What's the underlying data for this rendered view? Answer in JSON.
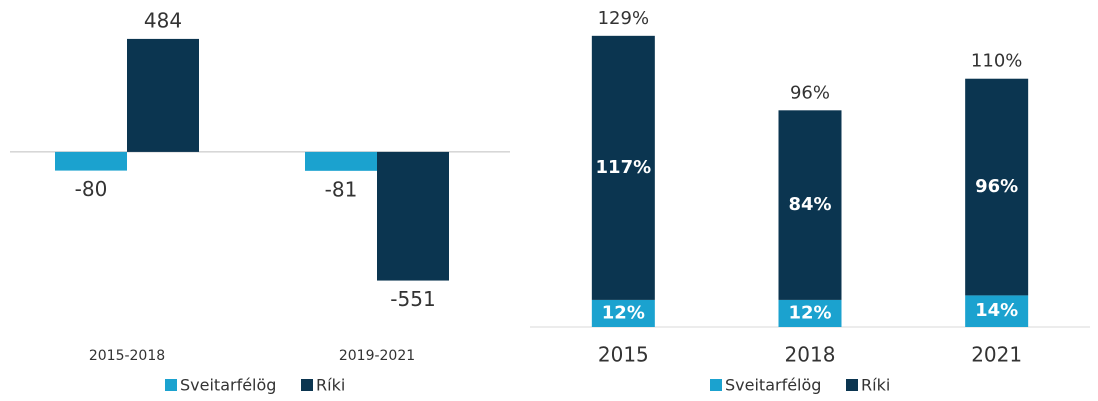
{
  "chart_data": [
    {
      "type": "bar",
      "categories": [
        "2015-2018",
        "2019-2021"
      ],
      "series": [
        {
          "name": "Sveitarfélög",
          "color": "#1ba2cf",
          "values": [
            -80,
            -81
          ]
        },
        {
          "name": "Ríki",
          "color": "#0b3550",
          "values": [
            484,
            -551
          ]
        }
      ],
      "ylim": [
        -600,
        550
      ]
    },
    {
      "type": "stacked_bar",
      "categories": [
        "2015",
        "2018",
        "2021"
      ],
      "series": [
        {
          "name": "Sveitarfélög",
          "color": "#1ba2cf",
          "values": [
            12,
            12,
            14
          ],
          "value_labels": [
            "12%",
            "12%",
            "14%"
          ]
        },
        {
          "name": "Ríki",
          "color": "#0b3550",
          "values": [
            117,
            84,
            96
          ],
          "value_labels": [
            "117%",
            "84%",
            "96%"
          ]
        }
      ],
      "totals": [
        129,
        96,
        110
      ],
      "total_labels": [
        "129%",
        "96%",
        "110%"
      ],
      "ylim": [
        0,
        140
      ]
    }
  ]
}
